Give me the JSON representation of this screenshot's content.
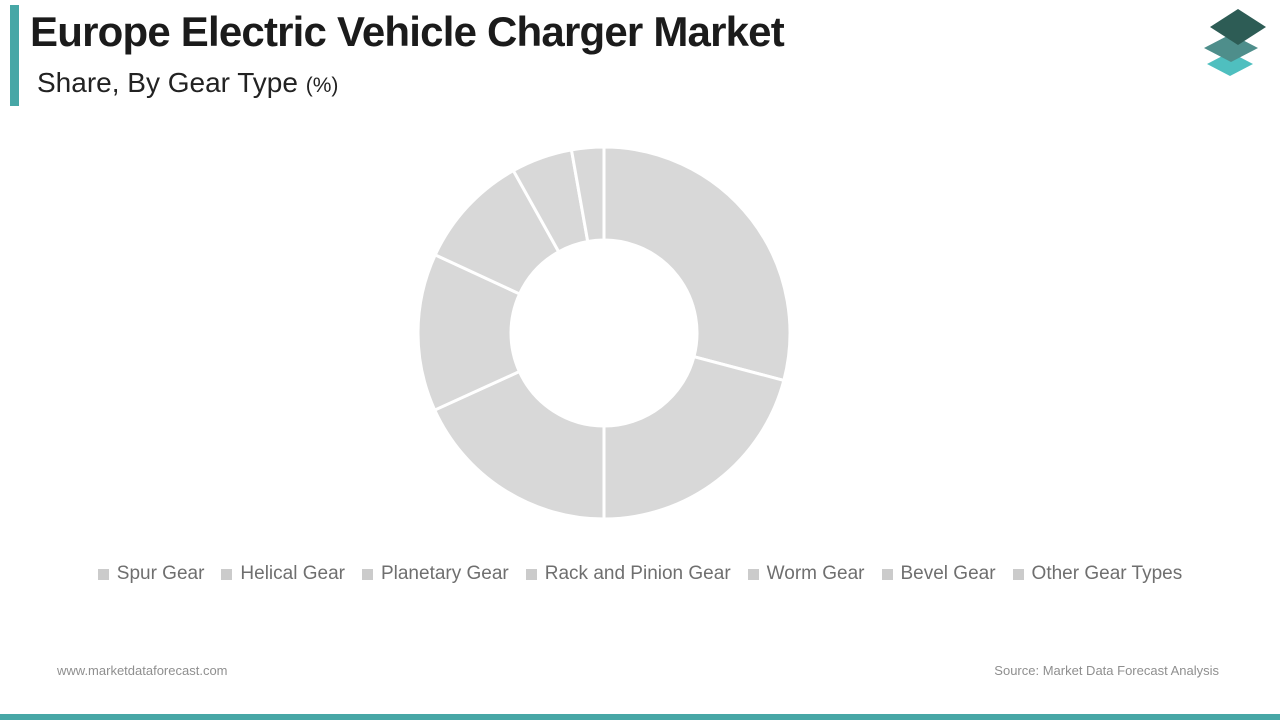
{
  "header": {
    "title": "Europe Electric Vehicle Charger Market",
    "subtitle": "Share, By Gear Type",
    "subtitle_unit": "(%)",
    "accent_color": "#47A7A6"
  },
  "logo": {
    "layers": [
      {
        "name": "bottom-layer",
        "color": "#4FBFBF"
      },
      {
        "name": "middle-layer",
        "color": "#4E8E8B"
      },
      {
        "name": "top-layer",
        "color": "#2D5C55"
      }
    ]
  },
  "chart_data": {
    "type": "pie",
    "subtype": "donut",
    "title": "Europe Electric Vehicle Charger Market Share, By Gear Type (%)",
    "categories": [
      "Spur Gear",
      "Helical Gear",
      "Planetary Gear",
      "Rack and Pinion Gear",
      "Worm Gear",
      "Bevel Gear",
      "Other Gear Types"
    ],
    "values": [
      29.1,
      20.9,
      18.2,
      13.7,
      10.0,
      5.3,
      2.8
    ],
    "unit": "%",
    "start_angle_deg": 0,
    "direction": "clockwise",
    "inner_radius_ratio": 0.5,
    "segment_color": "#d8d8d8",
    "divider_color": "#ffffff",
    "legend_position": "bottom",
    "data_labels": "none"
  },
  "legend": {
    "marker_color": "#cbcbcb",
    "text_color": "#6f6f6f"
  },
  "footer": {
    "website": "www.marketdataforecast.com",
    "source": "Source: Market Data Forecast Analysis"
  },
  "theme": {
    "bottom_bar_color": "#47A7A6",
    "background": "#ffffff"
  }
}
